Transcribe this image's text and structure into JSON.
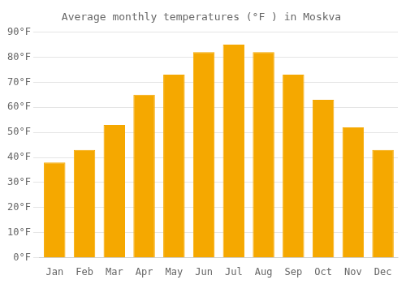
{
  "chart_data": {
    "type": "bar",
    "title": "Average monthly temperatures (°F ) in Moskva",
    "categories": [
      "Jan",
      "Feb",
      "Mar",
      "Apr",
      "May",
      "Jun",
      "Jul",
      "Aug",
      "Sep",
      "Oct",
      "Nov",
      "Dec"
    ],
    "values": [
      38,
      43,
      53,
      65,
      73,
      82,
      85,
      82,
      73,
      63,
      52,
      43
    ],
    "color": "#F5A800",
    "ylim": [
      0,
      90
    ],
    "yticks": [
      {
        "value": 0,
        "label": "0°F"
      },
      {
        "value": 10,
        "label": "10°F"
      },
      {
        "value": 20,
        "label": "20°F"
      },
      {
        "value": 30,
        "label": "30°F"
      },
      {
        "value": 40,
        "label": "40°F"
      },
      {
        "value": 50,
        "label": "50°F"
      },
      {
        "value": 60,
        "label": "60°F"
      },
      {
        "value": 70,
        "label": "70°F"
      },
      {
        "value": 80,
        "label": "80°F"
      },
      {
        "value": 90,
        "label": "90°F"
      }
    ],
    "grid": true
  }
}
